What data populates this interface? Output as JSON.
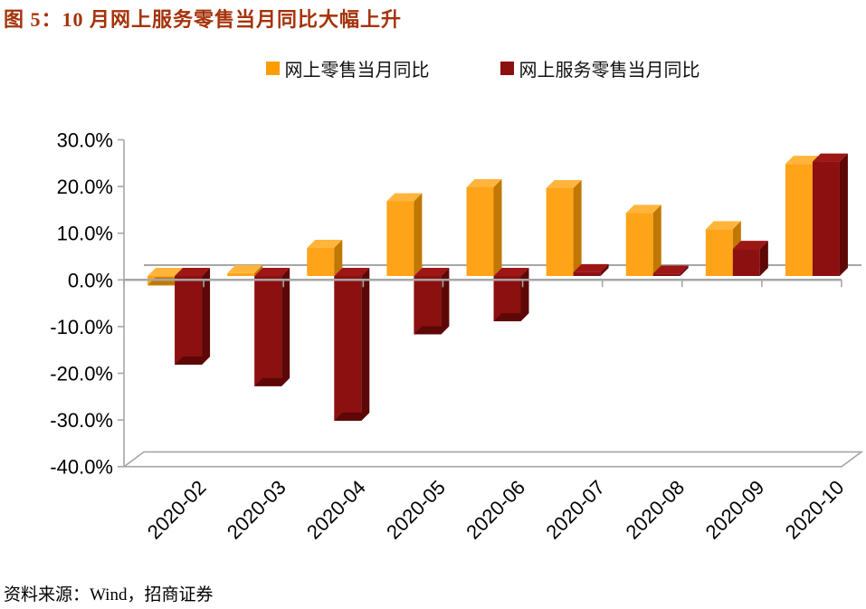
{
  "title": {
    "text": "图 5：10 月网上服务零售当月同比大幅上升",
    "color": "#A5330B"
  },
  "legend": {
    "position": "top",
    "items": [
      {
        "label": "网上零售当月同比",
        "color": "#FF9D00"
      },
      {
        "label": "网上服务零售当月同比",
        "color": "#8C1010"
      }
    ]
  },
  "chart_data": {
    "type": "bar",
    "style": "3d-clustered-column",
    "title": "图 5：10 月网上服务零售当月同比大幅上升",
    "categories": [
      "2020-02",
      "2020-03",
      "2020-04",
      "2020-05",
      "2020-06",
      "2020-07",
      "2020-08",
      "2020-09",
      "2020-10"
    ],
    "series": [
      {
        "name": "网上零售当月同比",
        "color": "#FFA319",
        "color_top": "#FFB53C",
        "color_side": "#C07802",
        "values": [
          -2.0,
          0.6,
          6.0,
          16.0,
          19.0,
          18.8,
          13.5,
          10.0,
          24.0
        ]
      },
      {
        "name": "网上服务零售当月同比",
        "color": "#8C1010",
        "color_top": "#9E1616",
        "color_side": "#5E0707",
        "values": [
          -19.0,
          -23.6,
          -31.0,
          -12.5,
          -9.7,
          0.8,
          0.5,
          5.8,
          24.5
        ]
      }
    ],
    "xlabel": "",
    "ylabel": "",
    "ylim": [
      -40,
      30
    ],
    "ytick_values": [
      30,
      20,
      10,
      0,
      -10,
      -20,
      -30,
      -40
    ],
    "ytick_labels": [
      "30.0%",
      "20.0%",
      "10.0%",
      "0.0%",
      "-10.0%",
      "-20.0%",
      "-30.0%",
      "-40.0%"
    ],
    "grid": false,
    "axis_color": "#A6A6A6",
    "tick_label_color": "#000000",
    "legend_position": "top"
  },
  "source": {
    "text": "资料来源：Wind，招商证券"
  }
}
